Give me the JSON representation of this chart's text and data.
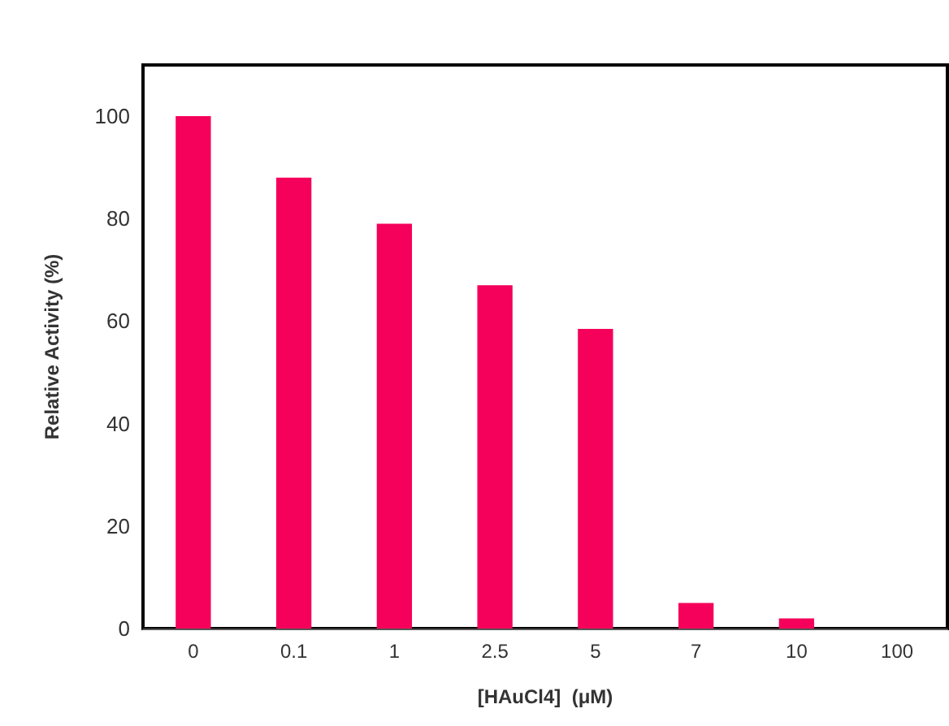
{
  "chart_data": {
    "type": "bar",
    "xlabel": "[HAuCl4]  (μM)",
    "ylabel": "Relative Activity (%)",
    "categories": [
      "0",
      "0.1",
      "1",
      "2.5",
      "5",
      "7",
      "10",
      "100"
    ],
    "values": [
      100,
      88,
      79,
      67,
      58.5,
      5,
      2,
      0
    ],
    "color": "#f5005a",
    "ylim": [
      0,
      110
    ],
    "yticks": [
      0,
      20,
      40,
      60,
      80,
      100
    ],
    "grid": false
  }
}
